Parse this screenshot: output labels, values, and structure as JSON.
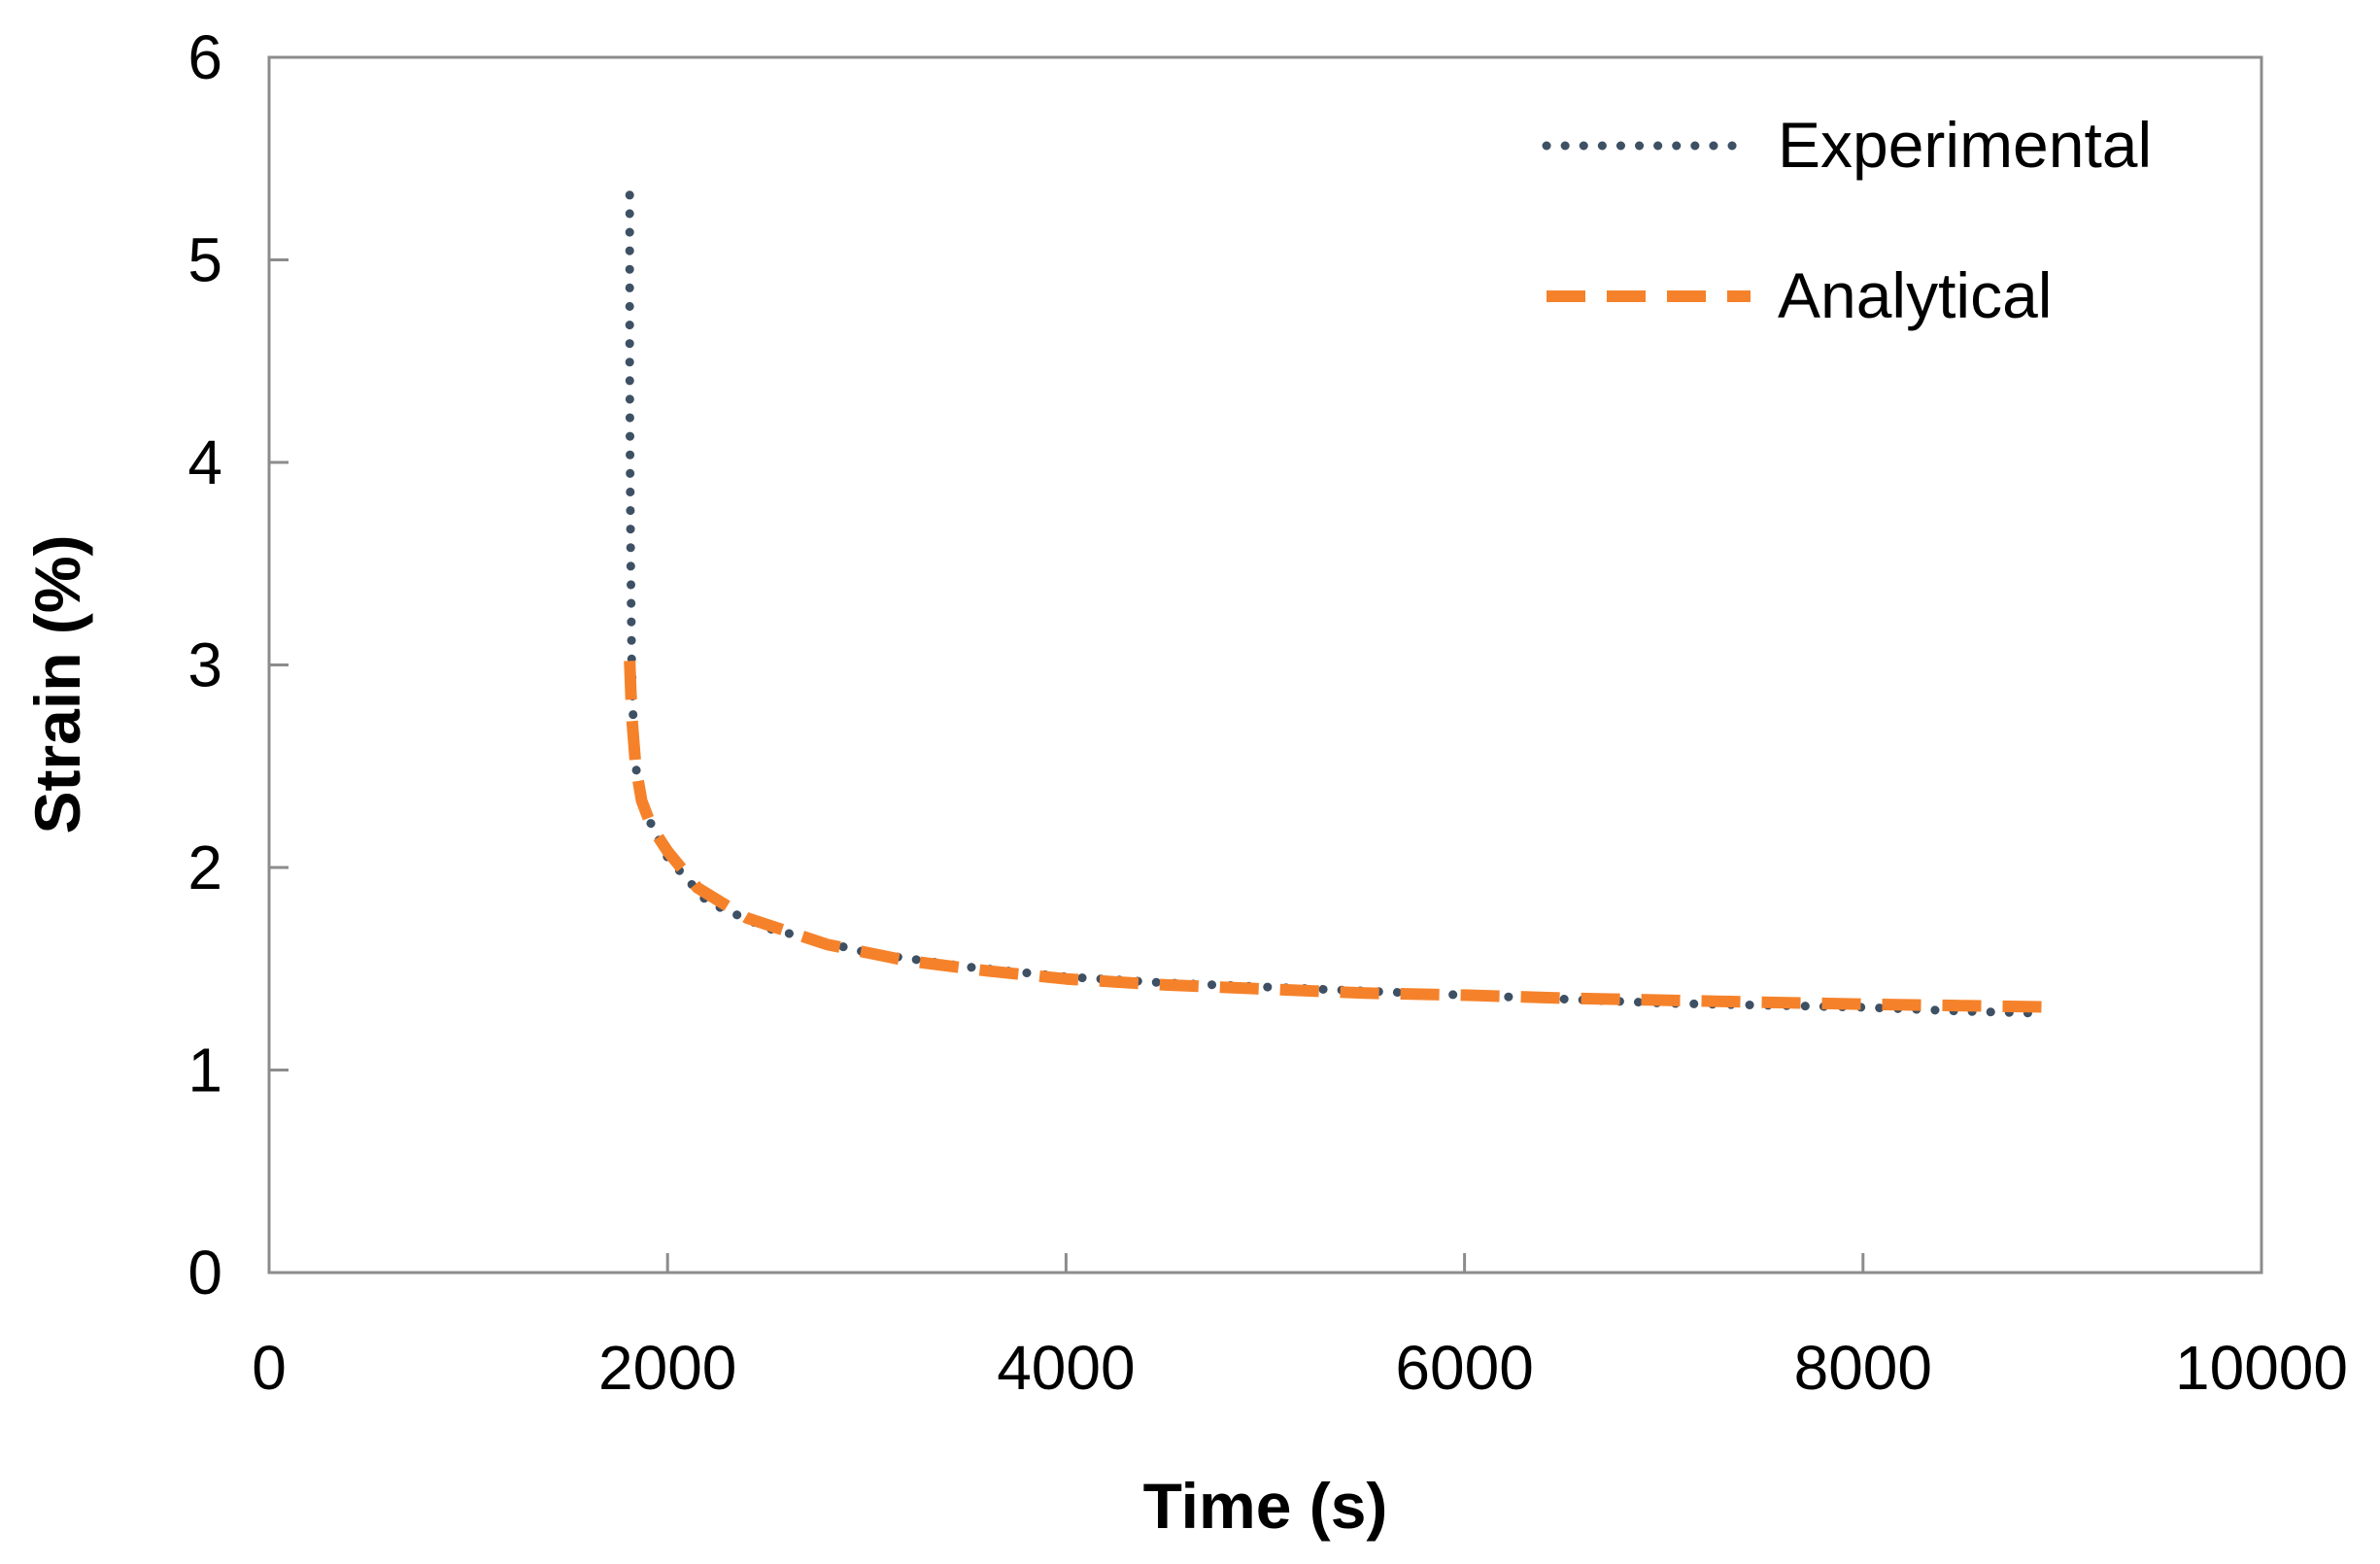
{
  "chart_data": {
    "type": "line",
    "title": "",
    "xlabel": "Time (s)",
    "ylabel": "Strain (%)",
    "xlim": [
      0,
      10000
    ],
    "ylim": [
      0,
      6
    ],
    "xticks": [
      0,
      2000,
      4000,
      6000,
      8000,
      10000
    ],
    "yticks": [
      0,
      1,
      2,
      3,
      4,
      5,
      6
    ],
    "grid": false,
    "legend_position": "top-right",
    "series": [
      {
        "name": "Experimental",
        "color": "#3e5064",
        "style": "dotted",
        "x": [
          1810,
          1810,
          1810,
          1812,
          1815,
          1820,
          1830,
          1850,
          1900,
          2000,
          2200,
          2500,
          3000,
          3500,
          4000,
          4500,
          5000,
          5500,
          6000,
          6500,
          7000,
          7500,
          8000,
          8500,
          8900
        ],
        "y": [
          5.32,
          5.0,
          4.5,
          4.0,
          3.5,
          3.0,
          2.65,
          2.4,
          2.25,
          2.05,
          1.83,
          1.7,
          1.58,
          1.51,
          1.46,
          1.43,
          1.41,
          1.39,
          1.37,
          1.35,
          1.33,
          1.32,
          1.31,
          1.29,
          1.28
        ]
      },
      {
        "name": "Analytical",
        "color": "#f5822a",
        "style": "dashed",
        "x": [
          1810,
          1820,
          1840,
          1870,
          1920,
          2000,
          2150,
          2400,
          2800,
          3200,
          3600,
          4000,
          4500,
          5000,
          5500,
          6000,
          6500,
          7000,
          7500,
          8000,
          8500,
          9000
        ],
        "y": [
          3.02,
          2.75,
          2.5,
          2.33,
          2.2,
          2.08,
          1.9,
          1.75,
          1.62,
          1.54,
          1.49,
          1.45,
          1.42,
          1.4,
          1.38,
          1.37,
          1.355,
          1.345,
          1.335,
          1.325,
          1.318,
          1.31
        ]
      }
    ]
  }
}
